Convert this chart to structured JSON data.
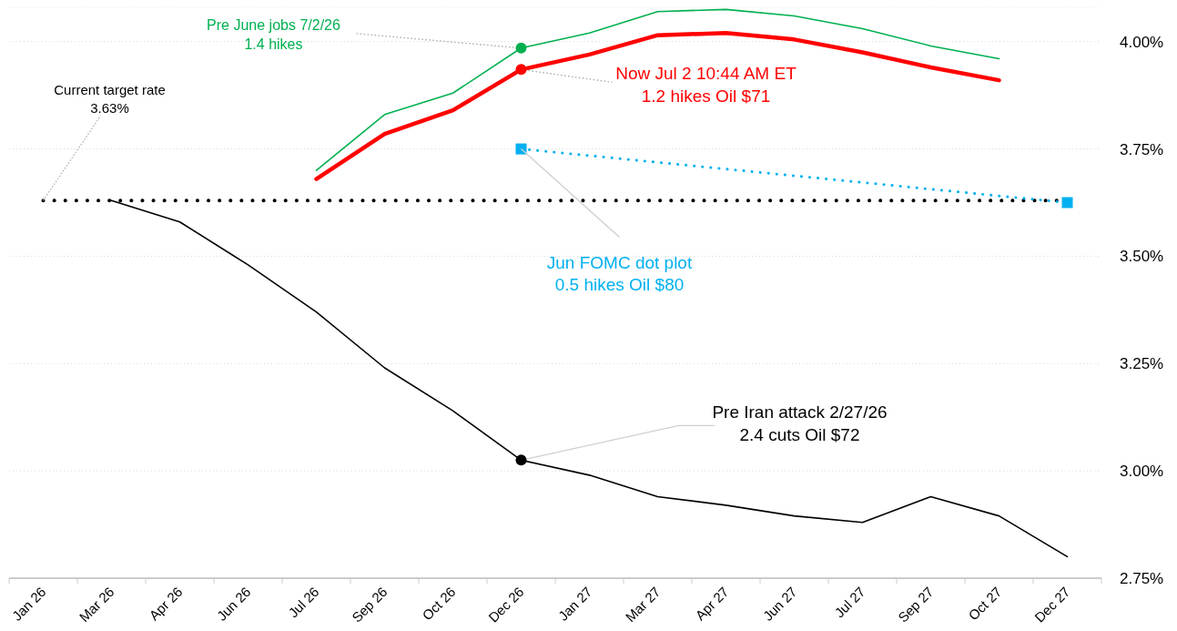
{
  "chart_data": {
    "type": "line",
    "categories": [
      "Jan 26",
      "Mar 26",
      "Apr 26",
      "Jun 26",
      "Jul 26",
      "Sep 26",
      "Oct 26",
      "Dec 26",
      "Jan 27",
      "Mar 27",
      "Apr 27",
      "Jun 27",
      "Jul 27",
      "Sep 27",
      "Oct 27",
      "Dec 27"
    ],
    "series": [
      {
        "color": "#00b050",
        "values": [
          null,
          null,
          null,
          null,
          3.7,
          3.83,
          3.88,
          3.985,
          4.02,
          4.07,
          4.075,
          4.06,
          4.03,
          3.99,
          3.96,
          null
        ]
      },
      {
        "color": "#ff0000",
        "values": [
          null,
          null,
          null,
          null,
          3.68,
          3.785,
          3.84,
          3.935,
          3.97,
          4.015,
          4.02,
          4.005,
          3.975,
          3.94,
          3.91,
          null
        ]
      },
      {
        "color": "#00b0f0",
        "x": [
          "Dec 26",
          "Dec 27"
        ],
        "values": [
          3.75,
          3.625
        ],
        "marker": "square",
        "line_style": "dotted"
      },
      {
        "color": "#000000",
        "values": [
          null,
          3.63,
          3.58,
          3.48,
          3.37,
          3.24,
          3.14,
          3.025,
          2.99,
          2.94,
          2.92,
          2.895,
          2.88,
          2.94,
          2.895,
          2.8
        ]
      }
    ],
    "ylim": [
      2.75,
      4.08
    ],
    "yticks": [
      {
        "value": 2.75,
        "label": "2.75%"
      },
      {
        "value": 3.0,
        "label": "3.00%"
      },
      {
        "value": 3.25,
        "label": "3.25%"
      },
      {
        "value": 3.5,
        "label": "3.50%"
      },
      {
        "value": 3.75,
        "label": "3.75%"
      },
      {
        "value": 4.0,
        "label": "4.00%"
      }
    ],
    "grid": "y",
    "legend": false,
    "marker": "none",
    "line_style": "solid",
    "ref_lines": [
      {
        "axis": "y",
        "value": 3.63,
        "label": "Current target rate\n3.63%",
        "color": "#000000",
        "line_style": "dotted"
      }
    ],
    "annotations": [
      {
        "text": "Pre June jobs 7/2/26\n1.4 hikes",
        "x": "Dec 26",
        "y": 3.985
      },
      {
        "text": "Now Jul 2 10:44 AM ET\n1.2 hikes Oil $71",
        "x": "Dec 26",
        "y": 3.935
      },
      {
        "text": "Jun FOMC dot plot\n0.5 hikes Oil $80",
        "x": "Dec 26",
        "y": 3.75
      },
      {
        "text": "Pre Iran attack 2/27/26\n2.4 cuts Oil $72",
        "x": "Dec 26",
        "y": 3.025
      }
    ]
  }
}
